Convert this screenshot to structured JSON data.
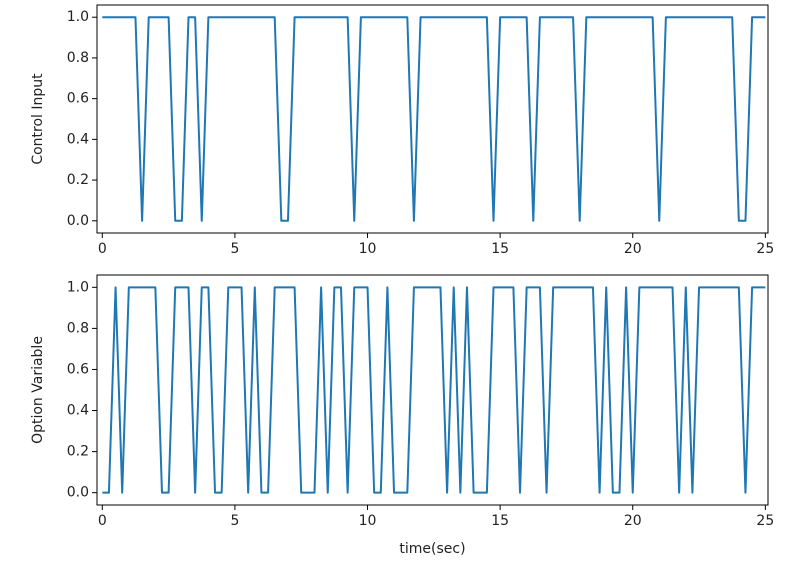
{
  "chart_data": [
    {
      "type": "line",
      "y_label": "Control Input",
      "color": "#1f77b4",
      "x": [
        0,
        1.25,
        1.5,
        1.75,
        2.5,
        2.75,
        3.0,
        3.25,
        3.5,
        3.75,
        4.0,
        6.5,
        6.75,
        7.0,
        7.25,
        9.25,
        9.5,
        9.75,
        11.5,
        11.75,
        12.0,
        14.5,
        14.75,
        15.0,
        16.0,
        16.25,
        16.5,
        17.75,
        18.0,
        18.25,
        20.75,
        21.0,
        21.25,
        23.75,
        24.0,
        24.25,
        24.5,
        25
      ],
      "values": [
        1,
        1,
        0,
        1,
        1,
        0,
        0,
        1,
        1,
        0,
        1,
        1,
        0,
        0,
        1,
        1,
        0,
        1,
        1,
        0,
        1,
        1,
        0,
        1,
        1,
        0,
        1,
        1,
        0,
        1,
        1,
        0,
        1,
        1,
        0,
        0,
        1,
        1
      ],
      "xlim": [
        -0.2,
        25.1
      ],
      "ylim": [
        -0.06,
        1.06
      ],
      "xticks": [
        0,
        5,
        10,
        15,
        20,
        25
      ],
      "yticks": [
        {
          "value": 0,
          "label": "0.0"
        },
        0.2,
        0.4,
        0.6,
        0.8,
        {
          "value": 1,
          "label": "1.0"
        }
      ]
    },
    {
      "type": "line",
      "y_label": "Option Variable",
      "x_label": "time(sec)",
      "color": "#1f77b4",
      "x": [
        0,
        0.25,
        0.5,
        0.75,
        1.0,
        2.0,
        2.25,
        2.5,
        2.75,
        3.25,
        3.5,
        3.75,
        4.0,
        4.25,
        4.5,
        4.75,
        5.25,
        5.5,
        5.75,
        6.0,
        6.25,
        6.5,
        7.25,
        7.5,
        8.0,
        8.25,
        8.5,
        8.75,
        9.0,
        9.25,
        9.5,
        10.0,
        10.25,
        10.5,
        10.75,
        11.0,
        11.5,
        11.75,
        12.75,
        13.0,
        13.25,
        13.5,
        13.75,
        14.0,
        14.5,
        14.75,
        15.5,
        15.75,
        16.0,
        16.5,
        16.75,
        17.0,
        18.5,
        18.75,
        19.0,
        19.25,
        19.5,
        19.75,
        20.0,
        20.25,
        21.5,
        21.75,
        22.0,
        22.25,
        22.5,
        24.0,
        24.25,
        24.5,
        25
      ],
      "values": [
        0,
        0,
        1,
        0,
        1,
        1,
        0,
        0,
        1,
        1,
        0,
        1,
        1,
        0,
        0,
        1,
        1,
        0,
        1,
        0,
        0,
        1,
        1,
        0,
        0,
        1,
        0,
        1,
        1,
        0,
        1,
        1,
        0,
        0,
        1,
        0,
        0,
        1,
        1,
        0,
        1,
        0,
        1,
        0,
        0,
        1,
        1,
        0,
        1,
        1,
        0,
        1,
        1,
        0,
        1,
        0,
        0,
        1,
        0,
        1,
        1,
        0,
        1,
        0,
        1,
        1,
        0,
        1,
        1
      ],
      "xlim": [
        -0.2,
        25.1
      ],
      "ylim": [
        -0.06,
        1.06
      ],
      "xticks": [
        0,
        5,
        10,
        15,
        20,
        25
      ],
      "yticks": [
        {
          "value": 0,
          "label": "0.0"
        },
        0.2,
        0.4,
        0.6,
        0.8,
        {
          "value": 1,
          "label": "1.0"
        }
      ]
    }
  ]
}
